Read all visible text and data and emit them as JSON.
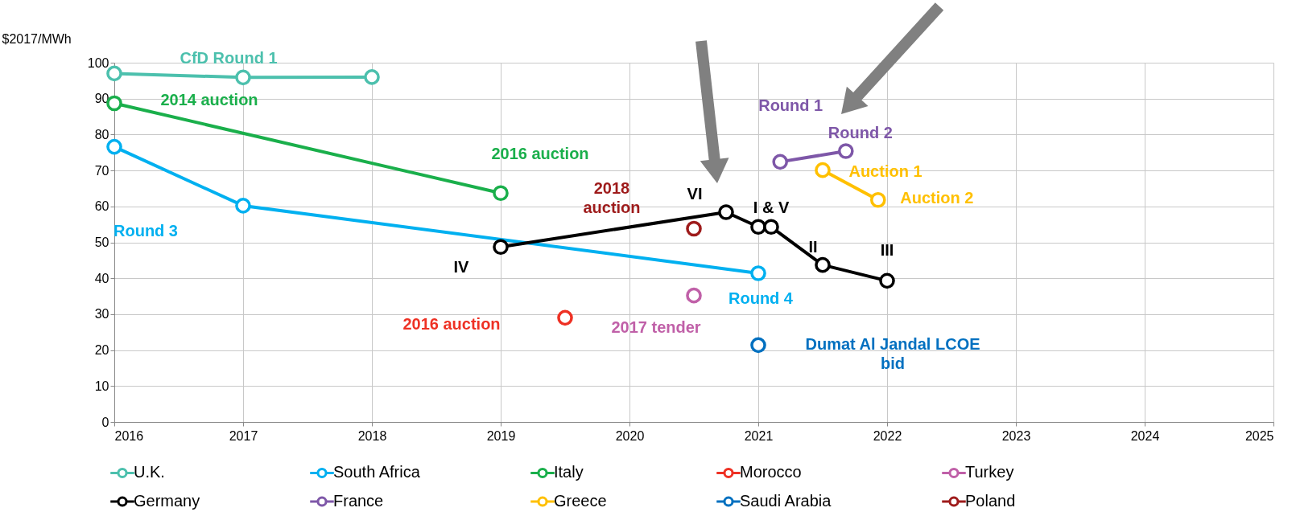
{
  "chart_data": {
    "type": "line",
    "ylabel": "$2017/MWh",
    "xlim": [
      2016,
      2025
    ],
    "ylim": [
      0,
      100
    ],
    "xticks": [
      2016,
      2017,
      2018,
      2019,
      2020,
      2021,
      2022,
      2023,
      2024,
      2025
    ],
    "yticks": [
      0,
      10,
      20,
      30,
      40,
      50,
      60,
      70,
      80,
      90,
      100
    ],
    "grid": true,
    "legend": "bottom",
    "marker": "circle",
    "series": [
      {
        "name": "U.K.",
        "color": "#4cc0ad",
        "x": [
          2016,
          2017,
          2018
        ],
        "values": [
          97,
          95.9,
          96
        ]
      },
      {
        "name": "South Africa",
        "color": "#00b0f0",
        "x": [
          2016,
          2017,
          2021
        ],
        "values": [
          76.6,
          60.2,
          41.4
        ]
      },
      {
        "name": "Italy",
        "color": "#1aaf4b",
        "x": [
          2016,
          2019
        ],
        "values": [
          88.7,
          63.7
        ]
      },
      {
        "name": "Morocco",
        "color": "#ee3124",
        "x": [
          2019.5
        ],
        "values": [
          29
        ]
      },
      {
        "name": "Turkey",
        "color": "#c060a8",
        "x": [
          2020.5
        ],
        "values": [
          35.2
        ]
      },
      {
        "name": "Germany",
        "color": "#000000",
        "x": [
          2019,
          2020.75,
          2021,
          2021.1,
          2021.5,
          2022
        ],
        "values": [
          48.7,
          58.4,
          54.3,
          54.3,
          43.7,
          39.3
        ]
      },
      {
        "name": "France",
        "color": "#7e57a8",
        "x": [
          2021.17,
          2021.68
        ],
        "values": [
          72.4,
          75.4
        ]
      },
      {
        "name": "Greece",
        "color": "#ffc000",
        "x": [
          2021.5,
          2021.93
        ],
        "values": [
          70.1,
          61.8
        ]
      },
      {
        "name": "Saudi Arabia",
        "color": "#0070c0",
        "x": [
          2021
        ],
        "values": [
          21.4
        ]
      },
      {
        "name": "Poland",
        "color": "#9e1b1b",
        "x": [
          2020.5
        ],
        "values": [
          53.8
        ]
      }
    ],
    "annotations": [
      {
        "text": "CfD Round 1",
        "x": 2017,
        "y": 95.9
      },
      {
        "text": "2014 auction",
        "x": 2016,
        "y": 88.7
      },
      "Round 3",
      {
        "text": "2016 auction",
        "x": 2019,
        "y": 63.7
      },
      "2018\nauction",
      {
        "text": "VI",
        "x": 2020.75,
        "y": 58.4
      },
      {
        "text": "I & V",
        "x": 2021.1,
        "y": 54.3
      },
      {
        "text": "IV",
        "x": 2019,
        "y": 48.7
      },
      {
        "text": "II",
        "x": 2021.5,
        "y": 43.7
      },
      {
        "text": "III",
        "x": 2022,
        "y": 39.3
      },
      "2016 auction",
      {
        "text": "2017 tender",
        "x": 2020.5,
        "y": 35.2
      },
      {
        "text": "Round 4",
        "x": 2021,
        "y": 41.4
      },
      "Dumat Al Jandal LCOE\nbid",
      {
        "text": "Round 1",
        "x": 2021.17,
        "y": 72.4
      },
      {
        "text": "Round 2",
        "x": 2021.68,
        "y": 75.4
      },
      {
        "text": "Auction 1",
        "x": 2021.5,
        "y": 70.1
      },
      {
        "text": "Auction 2",
        "x": 2021.93,
        "y": 61.8
      }
    ]
  }
}
